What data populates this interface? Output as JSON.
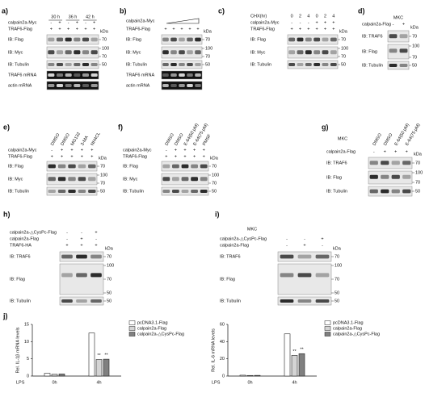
{
  "panels": [
    {
      "label": "a)",
      "spans": [
        "30 h",
        "36 h",
        "42 h"
      ],
      "rows": [
        {
          "name": "calpain2a-Myc",
          "signs": [
            "-",
            "+",
            "-",
            "+",
            "-",
            "+"
          ]
        },
        {
          "name": "TRAF6-Flag",
          "signs": [
            "+",
            "+",
            "+",
            "+",
            "+",
            "+"
          ]
        }
      ],
      "kda_title": "kDa",
      "blots": [
        {
          "name": "IB: Flag",
          "kda": [
            70
          ]
        },
        {
          "name": "IB: Myc",
          "kda": [
            100,
            70
          ]
        },
        {
          "name": "IB: Tubulin",
          "kda": [
            50
          ]
        },
        {
          "name": "TRAF6 mRNA",
          "kda": []
        },
        {
          "name": "actin mRNA",
          "kda": []
        }
      ]
    },
    {
      "label": "b)",
      "rows": [
        {
          "name": "calpain2a-Myc"
        },
        {
          "name": "TRAF6-Flag",
          "signs": [
            "+",
            "+",
            "+",
            "+",
            "+"
          ]
        }
      ],
      "kda_title": "kDa",
      "blots": [
        {
          "name": "IB: Flag",
          "kda": [
            70
          ]
        },
        {
          "name": "IB: Myc",
          "kda": [
            100,
            70
          ]
        },
        {
          "name": "IB: Tubulin",
          "kda": [
            50
          ]
        },
        {
          "name": "TRAF6 mRNA",
          "kda": []
        },
        {
          "name": "actin mRNA",
          "kda": []
        }
      ]
    },
    {
      "label": "c)",
      "rows": [
        {
          "name": "CHX(hr)",
          "signs": [
            "0",
            "2",
            "4",
            "0",
            "2",
            "4"
          ]
        },
        {
          "name": "calpain2a-Myc",
          "signs": [
            "-",
            "-",
            "-",
            "+",
            "+",
            "+"
          ]
        },
        {
          "name": "TRAF6-Flag",
          "signs": [
            "+",
            "+",
            "+",
            "+",
            "+",
            "+"
          ]
        }
      ],
      "kda_title": "kDa",
      "blots": [
        {
          "name": "IB: Flag",
          "kda": [
            70
          ]
        },
        {
          "name": "IB: Myc",
          "kda": [
            100,
            70
          ]
        },
        {
          "name": "IB: Tubulin",
          "kda": [
            50
          ]
        }
      ]
    },
    {
      "label": "d)",
      "header": "MKC",
      "rows": [
        {
          "name": "calpain2a-Flag",
          "signs": [
            "-",
            "+"
          ]
        }
      ],
      "kda_title": "kDa",
      "blots": [
        {
          "name": "IB: TRAF6",
          "kda": [
            70
          ]
        },
        {
          "name": "IB: Flag",
          "kda": [
            100,
            70
          ]
        },
        {
          "name": "IB: Tubulin",
          "kda": [
            50
          ]
        }
      ]
    },
    {
      "label": "e)",
      "columns": [
        "DMSO",
        "DMSO",
        "MG132",
        "3-MA",
        "NH4CL"
      ],
      "rows": [
        {
          "name": "calpain2a-Myc",
          "signs": [
            "-",
            "+",
            "+",
            "+",
            "+"
          ]
        },
        {
          "name": "TRAF6-Flag",
          "signs": [
            "+",
            "+",
            "+",
            "+",
            "+"
          ]
        }
      ],
      "kda_title": "kDa",
      "blots": [
        {
          "name": "IB: Flag",
          "kda": [
            70
          ]
        },
        {
          "name": "IB: Myc",
          "kda": [
            100,
            70
          ]
        },
        {
          "name": "IB: Tubulin",
          "kda": [
            50
          ]
        }
      ]
    },
    {
      "label": "f)",
      "columns": [
        "DMSO",
        "DMSO",
        "E-64(50 μM)",
        "E-64(75 μM)",
        "PMSF"
      ],
      "rows": [
        {
          "name": "calpain2a-Myc",
          "signs": [
            "-",
            "+",
            "+",
            "+",
            "+"
          ]
        },
        {
          "name": "TRAF6-Flag",
          "signs": [
            "+",
            "+",
            "+",
            "+",
            "+"
          ]
        }
      ],
      "kda_title": "kDa",
      "blots": [
        {
          "name": "IB: Flag",
          "kda": [
            70
          ]
        },
        {
          "name": "IB: Myc",
          "kda": [
            100,
            70
          ]
        },
        {
          "name": "IB: Tubulin",
          "kda": [
            50
          ]
        }
      ]
    },
    {
      "label": "g)",
      "header": "MKC",
      "columns": [
        "DMSO",
        "DMSO",
        "E-64(50 μM)",
        "E-64(75 μM)"
      ],
      "rows": [
        {
          "name": "calpain2a-Flag",
          "signs": [
            "-",
            "+",
            "+",
            "+"
          ]
        }
      ],
      "kda_title": "kDa",
      "blots": [
        {
          "name": "IB: TRAF6",
          "kda": [
            70
          ]
        },
        {
          "name": "IB: Flag",
          "kda": [
            100,
            70
          ]
        },
        {
          "name": "IB: Tubulin",
          "kda": [
            50
          ]
        }
      ]
    },
    {
      "label": "h)",
      "rows": [
        {
          "name": "calpain2a-△CysPc-Flag",
          "signs": [
            "-",
            "-",
            "+"
          ]
        },
        {
          "name": "calpain2a-Flag",
          "signs": [
            "-",
            "+",
            "-"
          ]
        },
        {
          "name": "TRAF6-HA",
          "signs": [
            "+",
            "+",
            "+"
          ]
        }
      ],
      "kda_title": "kDa",
      "blots": [
        {
          "name": "IB: TRAF6",
          "kda": [
            70
          ]
        },
        {
          "name": "IB: Flag",
          "kda": [
            100,
            70,
            50
          ]
        },
        {
          "name": "IB: Tubulin",
          "kda": [
            50
          ]
        }
      ]
    },
    {
      "label": "i)",
      "header": "MKC",
      "rows": [
        {
          "name": "calpain2a-△CysPc-Flag",
          "signs": [
            "-",
            "-",
            "+"
          ]
        },
        {
          "name": "calpain2a-Flag",
          "signs": [
            "-",
            "+",
            "-"
          ]
        }
      ],
      "kda_title": "kDa",
      "blots": [
        {
          "name": "IB: TRAF6",
          "kda": [
            70
          ]
        },
        {
          "name": "IB: Flag",
          "kda": [
            100,
            70,
            50
          ]
        },
        {
          "name": "IB: Tubulin",
          "kda": [
            50
          ]
        }
      ]
    }
  ],
  "panel_j_label": "j)",
  "chart_data": [
    {
      "type": "bar",
      "y_label": "Rel. IL-1β mRNA levels",
      "x_label": "LPS",
      "categories": [
        "0h",
        "4h"
      ],
      "ylim": [
        0,
        15
      ],
      "yticks": [
        0,
        5,
        10,
        15
      ],
      "series": [
        {
          "name": "pcDNA3.1-Flag",
          "color": "#ffffff",
          "values": [
            0.8,
            12.5
          ]
        },
        {
          "name": "calpain2a-Flag",
          "color": "#d4d4d4",
          "values": [
            0.5,
            4.8
          ]
        },
        {
          "name": "calpain2a-△CysPc-Flag",
          "color": "#808080",
          "values": [
            0.6,
            4.9
          ]
        }
      ],
      "annotations": [
        {
          "series": 1,
          "category": 1,
          "text": "**"
        },
        {
          "series": 2,
          "category": 1,
          "text": "**"
        }
      ]
    },
    {
      "type": "bar",
      "y_label": "Rel. IL-6 mRNA levels",
      "x_label": "LPS",
      "categories": [
        "0h",
        "4h"
      ],
      "ylim": [
        0,
        60
      ],
      "yticks": [
        0,
        20,
        40,
        60
      ],
      "series": [
        {
          "name": "pcDNA3.1-Flag",
          "color": "#ffffff",
          "values": [
            1,
            49
          ]
        },
        {
          "name": "calpain2a-Flag",
          "color": "#d4d4d4",
          "values": [
            0.7,
            24
          ]
        },
        {
          "name": "calpain2a-△CysPc-Flag",
          "color": "#808080",
          "values": [
            0.8,
            26
          ]
        }
      ],
      "annotations": [
        {
          "series": 1,
          "category": 1,
          "text": "**"
        },
        {
          "series": 2,
          "category": 1,
          "text": "**"
        }
      ]
    }
  ]
}
